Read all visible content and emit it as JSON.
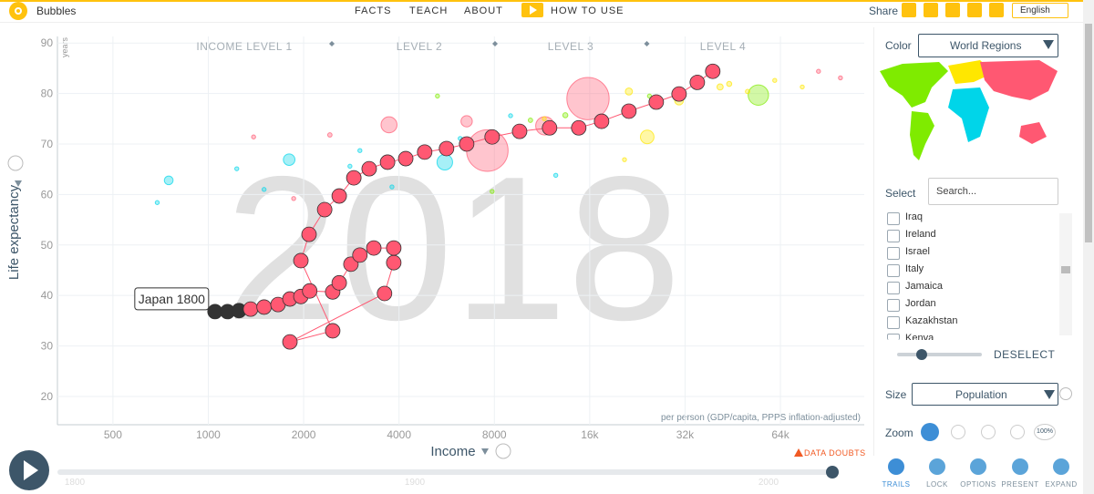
{
  "header": {
    "app": "Bubbles",
    "nav": [
      "FACTS",
      "TEACH",
      "ABOUT",
      "HOW TO USE"
    ],
    "share": "Share",
    "language": "English"
  },
  "chart_data": {
    "type": "scatter",
    "year": "2018",
    "x_label": "Income",
    "x_unit": "per person (GDP/capita, PPPS inflation-adjusted)",
    "y_label": "Life expectancy",
    "y_unit": "years",
    "income_levels": [
      "INCOME LEVEL 1",
      "LEVEL 2",
      "LEVEL 3",
      "LEVEL 4"
    ],
    "log_x": true,
    "grid": true,
    "xlim": [
      334,
      117700
    ],
    "xticks": [
      500,
      1000,
      2000,
      4000,
      8000,
      {
        "value": 16000,
        "label": "16k"
      },
      {
        "value": 32000,
        "label": "32k"
      },
      {
        "value": 64000,
        "label": "64k"
      }
    ],
    "ylim": [
      14.4,
      91.3
    ],
    "yticks": [
      20,
      30,
      40,
      50,
      60,
      70,
      80,
      90
    ],
    "bubbles": {
      "x": [
        15800,
        7600,
        5580,
        54500,
        11550,
        24300,
        3720,
        6540,
        1800,
        750,
        690,
        2800,
        9000,
        12500,
        1230,
        1500,
        1860,
        2420,
        1390,
        41270,
        44100,
        50400,
        61400,
        75000,
        84400,
        99000,
        30630,
        21270,
        24700,
        13400,
        10400,
        7870,
        5290,
        20600,
        6240,
        11500,
        3800,
        3010
      ],
      "y": [
        79.0,
        68.7,
        66.4,
        79.7,
        73.6,
        71.4,
        73.8,
        74.5,
        66.9,
        62.8,
        58.4,
        65.6,
        75.6,
        63.8,
        65.1,
        61.0,
        59.2,
        71.8,
        71.4,
        81.3,
        81.9,
        80.4,
        82.6,
        81.3,
        84.4,
        83.1,
        78.6,
        80.4,
        79.5,
        75.7,
        74.7,
        60.6,
        79.5,
        66.9,
        71.1,
        75.0,
        61.5,
        68.7
      ],
      "size": [
        1400,
        1350,
        190,
        326,
        265,
        145,
        200,
        100,
        105,
        60,
        5,
        12,
        10,
        8,
        3,
        5,
        10,
        15,
        4,
        30,
        20,
        15,
        5,
        3,
        2,
        1,
        60,
        40,
        10,
        20,
        15,
        2,
        1,
        3,
        8,
        10,
        3,
        4
      ],
      "color": [
        "#ff5872",
        "#ff5872",
        "#00d5e9",
        "#7feb00",
        "#ff5872",
        "#ffe700",
        "#ff5872",
        "#ff5872",
        "#00d5e9",
        "#00d5e9",
        "#00d5e9",
        "#00d5e9",
        "#00d5e9",
        "#00d5e9",
        "#00d5e9",
        "#00d5e9",
        "#ff5872",
        "#ff5872",
        "#ff5872",
        "#ffe700",
        "#ffe700",
        "#ffe700",
        "#ffe700",
        "#ffe700",
        "#ff5872",
        "#ff5872",
        "#ffe700",
        "#ffe700",
        "#7feb00",
        "#7feb00",
        "#7feb00",
        "#7feb00",
        "#7feb00",
        "#ffe700",
        "#00d5e9",
        "#ffe700",
        "#00d5e9",
        "#00d5e9"
      ]
    },
    "trail": {
      "label": "Japan 1800",
      "color": "#ff5872",
      "x": [
        1050,
        1150,
        1250,
        1360,
        1500,
        1660,
        1810,
        1960,
        2090,
        2470,
        2590,
        2820,
        3010,
        3330,
        3850,
        3850,
        3600,
        1810,
        2470,
        1960,
        2080,
        2330,
        2590,
        2880,
        3220,
        3680,
        4200,
        4820,
        5650,
        6540,
        7870,
        9610,
        11950,
        14770,
        17440,
        21270,
        25950,
        30630,
        34970,
        39130
      ],
      "y": [
        36.8,
        36.8,
        37.0,
        37.3,
        37.7,
        38.2,
        39.3,
        39.8,
        40.9,
        40.7,
        42.5,
        46.2,
        48.0,
        49.4,
        49.4,
        46.5,
        40.4,
        30.8,
        33.0,
        46.9,
        52.1,
        57.0,
        59.7,
        63.3,
        65.1,
        66.4,
        67.1,
        68.4,
        69.1,
        70.0,
        71.4,
        72.5,
        73.2,
        73.2,
        74.5,
        76.5,
        78.3,
        79.9,
        82.2,
        84.4
      ]
    },
    "data_doubts": "DATA DOUBTS",
    "timeline": [
      "1800",
      "1900",
      "2000"
    ]
  },
  "sidebar": {
    "color_label": "Color",
    "color_value": "World Regions",
    "select_label": "Select",
    "search_placeholder": "Search...",
    "countries": [
      "Iraq",
      "Ireland",
      "Israel",
      "Italy",
      "Jamaica",
      "Jordan",
      "Kazakhstan",
      "Kenya"
    ],
    "deselect": "DESELECT",
    "size_label": "Size",
    "size_value": "Population",
    "zoom_label": "Zoom",
    "zoom_reset": "100%",
    "buttons": [
      "TRAILS",
      "LOCK",
      "OPTIONS",
      "PRESENT",
      "EXPAND"
    ]
  }
}
